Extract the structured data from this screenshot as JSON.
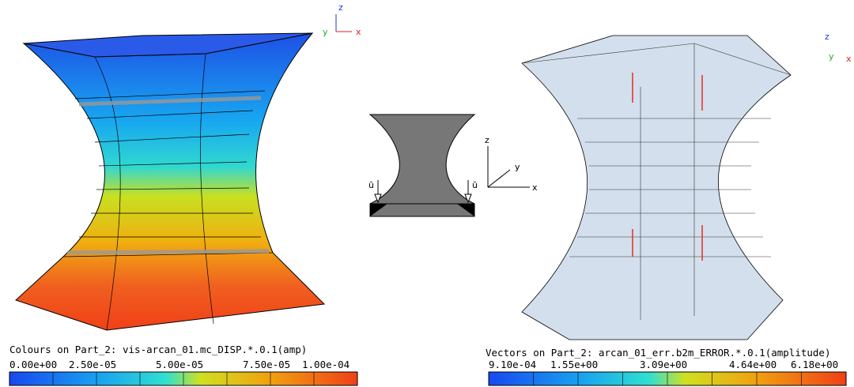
{
  "left_panel": {
    "triad": {
      "z": "z",
      "y": "y",
      "x": "x"
    },
    "legend_title": "Colours on Part_2: vis-arcan_01.mc_DISP.*.0.1(amp)",
    "ticks": [
      "0.00e+00",
      "2.50e-05",
      "5.00e-05",
      "7.50e-05",
      "1.00e-04"
    ]
  },
  "center_diagram": {
    "load_left": "ū",
    "load_right": "ū",
    "axes": {
      "z": "z",
      "y": "y",
      "x": "x"
    }
  },
  "right_panel": {
    "triad": {
      "z": "z",
      "y": "y",
      "x": "x"
    },
    "legend_title": "Vectors on Part_2: arcan_01_err.b2m_ERROR.*.0.1(amplitude)",
    "ticks": [
      "9.10e-04",
      "1.55e+00",
      "3.09e+00",
      "4.64e+00",
      "6.18e+00"
    ]
  }
}
